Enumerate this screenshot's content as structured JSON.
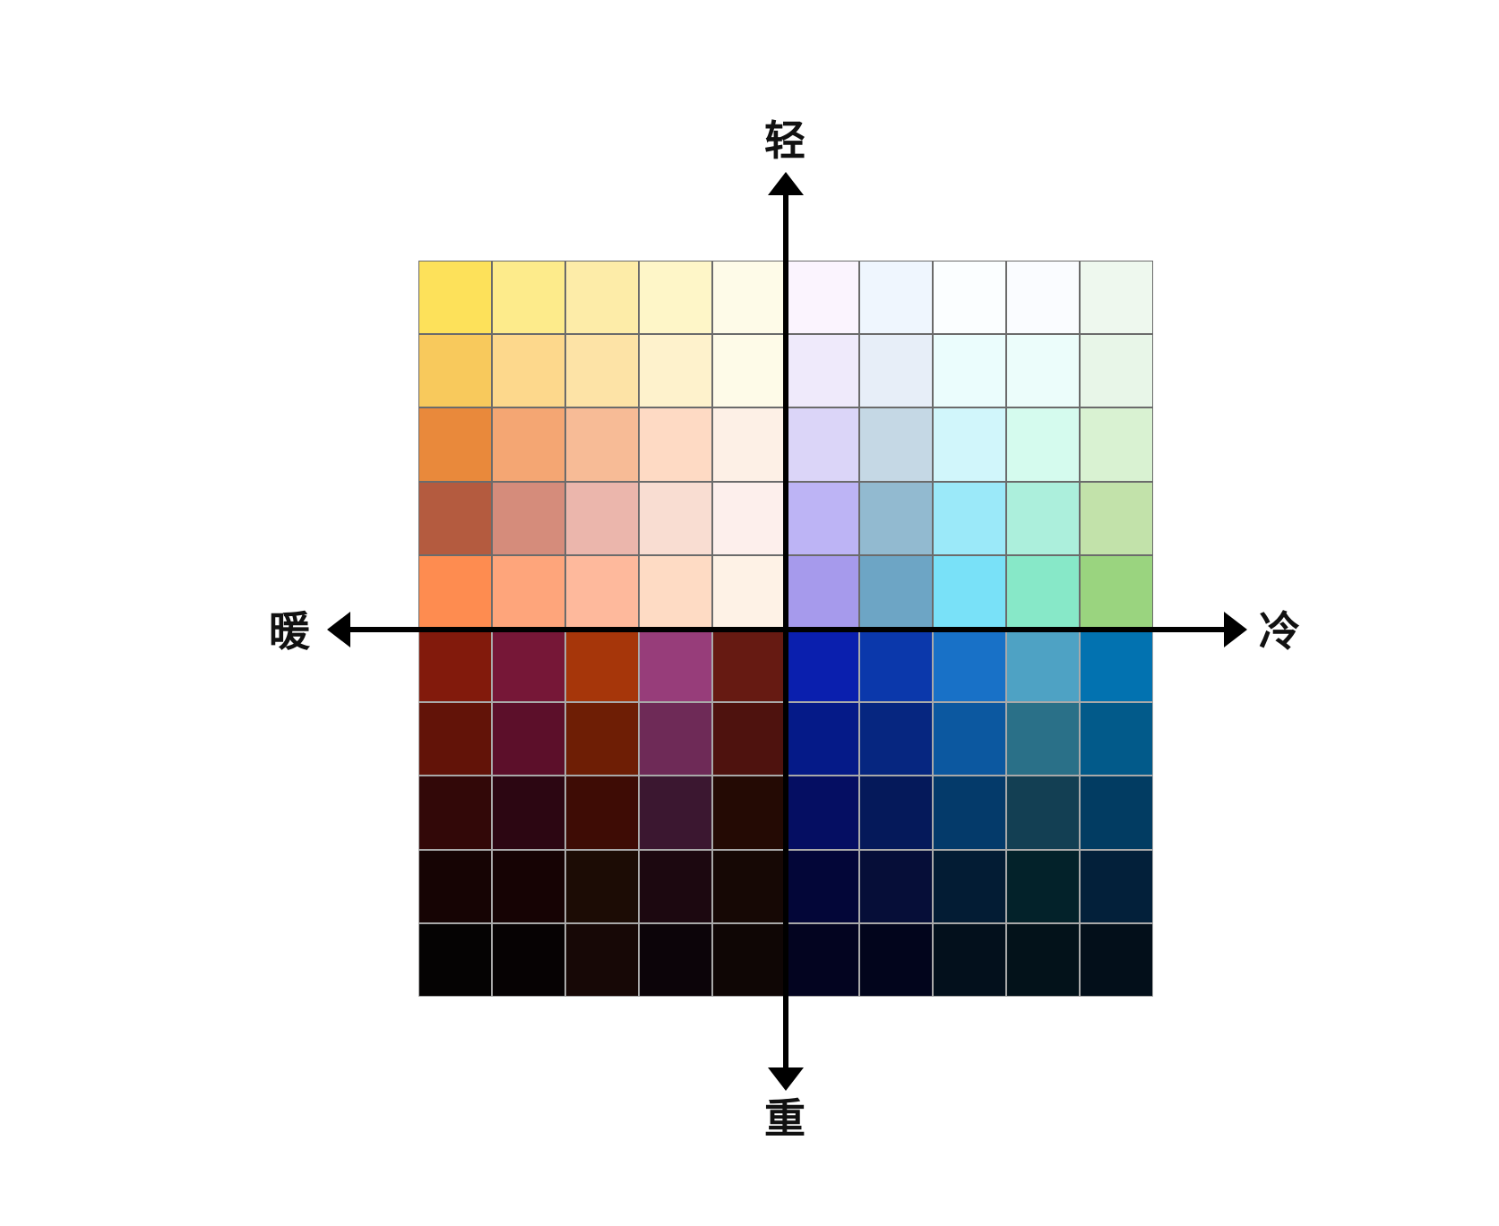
{
  "axes": {
    "top": "轻",
    "bottom": "重",
    "left": "暖",
    "right": "冷",
    "line_color": "#000000"
  },
  "swatch_grid": {
    "rows": 10,
    "columns": 10,
    "colors": [
      [
        "#fde15a",
        "#fdeb8b",
        "#fdeca8",
        "#fef6c8",
        "#fefbe8",
        "#fbf4fe",
        "#eff6fe",
        "#fbfeff",
        "#fafcff",
        "#eef8ee"
      ],
      [
        "#f8c95c",
        "#fdd88c",
        "#fde3a6",
        "#fef2cc",
        "#fefbe8",
        "#efeafb",
        "#e7eef8",
        "#ebfdfd",
        "#ecfdfb",
        "#e8f6e8"
      ],
      [
        "#e9893b",
        "#f4a673",
        "#f7bb96",
        "#fedac4",
        "#fdf0e6",
        "#dbd5f8",
        "#c5d8e5",
        "#d1f6fb",
        "#d5fbee",
        "#d9f2d2"
      ],
      [
        "#b45b3f",
        "#d58c7b",
        "#ebb6ac",
        "#f9ddd2",
        "#fdefec",
        "#bdb4f5",
        "#92bad0",
        "#9be9f9",
        "#acefdc",
        "#c2e2aa"
      ],
      [
        "#fe8c50",
        "#fea57b",
        "#feb99c",
        "#fedbc4",
        "#fef2e6",
        "#a69aec",
        "#6da5c5",
        "#79e1f8",
        "#87e8c8",
        "#9ad47f"
      ],
      [
        "#821a0c",
        "#761737",
        "#a6360a",
        "#973d7a",
        "#661a12",
        "#0a1fae",
        "#0b38ab",
        "#1871c7",
        "#4ea2c4",
        "#0272b0"
      ],
      [
        "#621308",
        "#5c0f2a",
        "#6e1e05",
        "#6e2a57",
        "#4e120e",
        "#051a88",
        "#062680",
        "#0c58a0",
        "#2a7088",
        "#025a8a"
      ],
      [
        "#320808",
        "#2c0612",
        "#3e0c05",
        "#3b1730",
        "#240a04",
        "#050e62",
        "#05195a",
        "#043a6a",
        "#133f53",
        "#023c62"
      ],
      [
        "#160404",
        "#160304",
        "#1c0c05",
        "#1c0810",
        "#160805",
        "#030638",
        "#060e38",
        "#031c34",
        "#03222a",
        "#03203a"
      ],
      [
        "#050303",
        "#060203",
        "#170806",
        "#0c0409",
        "#0f0605",
        "#030420",
        "#02051c",
        "#03101c",
        "#03121a",
        "#030f1a"
      ]
    ]
  }
}
